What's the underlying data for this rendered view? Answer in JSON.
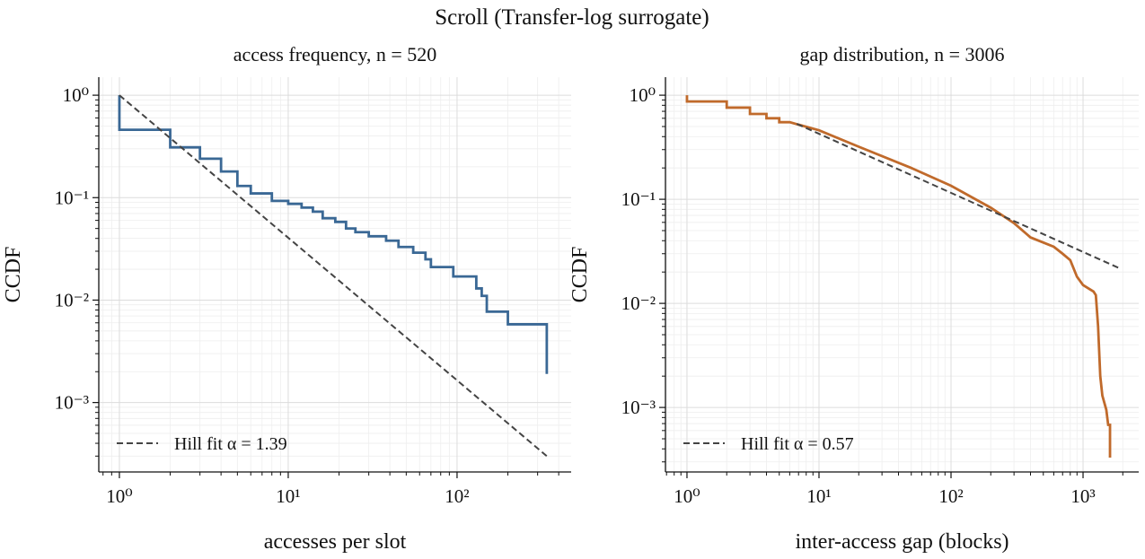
{
  "title": "Scroll (Transfer-log surrogate)",
  "chart_data": [
    {
      "type": "line",
      "title": "access frequency, n = 520",
      "xlabel": "accesses per slot",
      "ylabel": "CCDF",
      "xscale": "log",
      "yscale": "log",
      "grid": true,
      "legend": "lower left",
      "xlim": [
        0.755,
        474
      ],
      "ylim": [
        0.00021,
        1.5
      ],
      "xticks": [
        {
          "value": 1,
          "label": "10⁰"
        },
        {
          "value": 10,
          "label": "10¹"
        },
        {
          "value": 100,
          "label": "10²"
        }
      ],
      "yticks": [
        {
          "value": 0.001,
          "label": "10⁻³"
        },
        {
          "value": 0.01,
          "label": "10⁻²"
        },
        {
          "value": 0.1,
          "label": "10⁻¹"
        },
        {
          "value": 1,
          "label": "10⁰"
        }
      ],
      "xminorticks": [
        0.8,
        0.9,
        2,
        3,
        4,
        5,
        6,
        7,
        8,
        9,
        20,
        30,
        40,
        50,
        60,
        70,
        80,
        90,
        200,
        300,
        400
      ],
      "yminorticks": [
        0.0003,
        0.0004,
        0.0005,
        0.0006,
        0.0007,
        0.0008,
        0.0009,
        0.002,
        0.003,
        0.004,
        0.005,
        0.006,
        0.007,
        0.008,
        0.009,
        0.02,
        0.03,
        0.04,
        0.05,
        0.06,
        0.07,
        0.08,
        0.09,
        0.2,
        0.3,
        0.4,
        0.5,
        0.6,
        0.7,
        0.8,
        0.9
      ],
      "series": [
        {
          "color": "#3a6895",
          "linestyle": "solid",
          "x": [
            1,
            1,
            2,
            2,
            3,
            3,
            4,
            4,
            5,
            5,
            6,
            6,
            8,
            8,
            10,
            10,
            12,
            12,
            14,
            14,
            16,
            16,
            19,
            19,
            22,
            22,
            25,
            25,
            30,
            30,
            38,
            38,
            45,
            45,
            55,
            55,
            65,
            65,
            70,
            70,
            95,
            95,
            130,
            130,
            140,
            140,
            150,
            150,
            200,
            200,
            340,
            340
          ],
          "values": [
            1,
            0.46,
            0.46,
            0.31,
            0.31,
            0.24,
            0.24,
            0.18,
            0.18,
            0.13,
            0.13,
            0.11,
            0.11,
            0.093,
            0.093,
            0.087,
            0.087,
            0.08,
            0.08,
            0.073,
            0.073,
            0.063,
            0.063,
            0.058,
            0.058,
            0.05,
            0.05,
            0.046,
            0.046,
            0.042,
            0.042,
            0.038,
            0.038,
            0.033,
            0.033,
            0.029,
            0.029,
            0.025,
            0.025,
            0.021,
            0.021,
            0.017,
            0.017,
            0.013,
            0.013,
            0.011,
            0.011,
            0.0077,
            0.0077,
            0.0058,
            0.0058,
            0.0019
          ]
        },
        {
          "name": "Hill fit α = 1.39",
          "color": "#444444",
          "linestyle": "dashed",
          "x": [
            1,
            340
          ],
          "values": [
            1,
            0.0003
          ]
        }
      ]
    },
    {
      "type": "line",
      "title": "gap distribution, n = 3006",
      "xlabel": "inter-access gap (blocks)",
      "ylabel": "CCDF",
      "xscale": "log",
      "yscale": "log",
      "grid": true,
      "legend": "lower left",
      "xlim": [
        0.687,
        2640
      ],
      "ylim": [
        0.00024,
        1.49
      ],
      "xticks": [
        {
          "value": 1,
          "label": "10⁰"
        },
        {
          "value": 10,
          "label": "10¹"
        },
        {
          "value": 100,
          "label": "10²"
        },
        {
          "value": 1000,
          "label": "10³"
        }
      ],
      "yticks": [
        {
          "value": 0.001,
          "label": "10⁻³"
        },
        {
          "value": 0.01,
          "label": "10⁻²"
        },
        {
          "value": 0.1,
          "label": "10⁻¹"
        },
        {
          "value": 1,
          "label": "10⁰"
        }
      ],
      "xminorticks": [
        0.7,
        0.8,
        0.9,
        2,
        3,
        4,
        5,
        6,
        7,
        8,
        9,
        20,
        30,
        40,
        50,
        60,
        70,
        80,
        90,
        200,
        300,
        400,
        500,
        600,
        700,
        800,
        900,
        2000
      ],
      "yminorticks": [
        0.0003,
        0.0004,
        0.0005,
        0.0006,
        0.0007,
        0.0008,
        0.0009,
        0.002,
        0.003,
        0.004,
        0.005,
        0.006,
        0.007,
        0.008,
        0.009,
        0.02,
        0.03,
        0.04,
        0.05,
        0.06,
        0.07,
        0.08,
        0.09,
        0.2,
        0.3,
        0.4,
        0.5,
        0.6,
        0.7,
        0.8,
        0.9
      ],
      "series": [
        {
          "color": "#c06a2b",
          "linestyle": "solid",
          "x": [
            1,
            1,
            2,
            2,
            3,
            3,
            4,
            4,
            5,
            5,
            6,
            10,
            20,
            50,
            100,
            200,
            300,
            400,
            600,
            700,
            800,
            900,
            1000,
            1200,
            1250,
            1300,
            1350,
            1400,
            1500,
            1550,
            1600,
            1600
          ],
          "values": [
            1,
            0.87,
            0.87,
            0.76,
            0.76,
            0.66,
            0.66,
            0.6,
            0.6,
            0.55,
            0.55,
            0.46,
            0.32,
            0.2,
            0.135,
            0.083,
            0.059,
            0.043,
            0.035,
            0.03,
            0.026,
            0.018,
            0.015,
            0.013,
            0.012,
            0.006,
            0.002,
            0.0013,
            0.00095,
            0.00068,
            0.00068,
            0.00033
          ]
        },
        {
          "name": "Hill fit α = 0.57",
          "color": "#444444",
          "linestyle": "dashed",
          "x": [
            6.8,
            1850
          ],
          "values": [
            0.53,
            0.022
          ]
        }
      ]
    }
  ]
}
